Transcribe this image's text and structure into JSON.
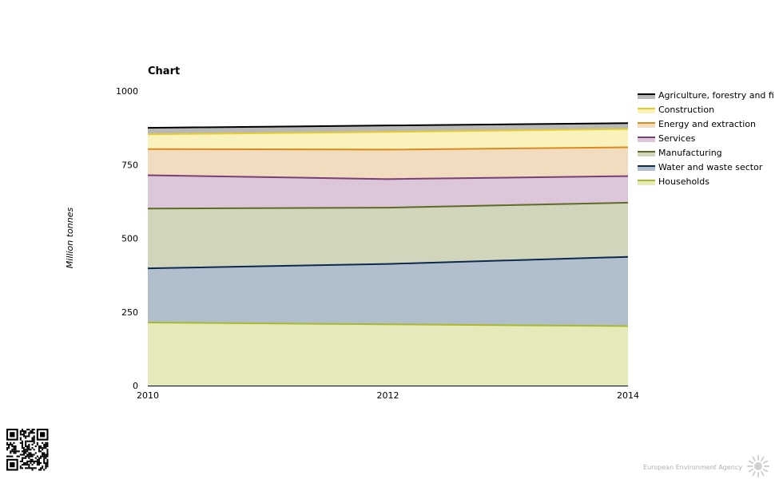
{
  "chart_data": {
    "type": "area",
    "stacked": true,
    "title": "Chart",
    "xlabel": "",
    "ylabel": "Million tonnes",
    "x": [
      2010,
      2012,
      2014
    ],
    "x_ticks": [
      "2010",
      "2012",
      "2014"
    ],
    "y_ticks": [
      "0",
      "250",
      "500",
      "750",
      "1000"
    ],
    "ylim": [
      0,
      1000
    ],
    "grid": false,
    "legend_position": "right",
    "series": [
      {
        "name": "Households",
        "values": [
          214,
          208,
          202
        ],
        "line_color": "#a9b82c",
        "fill_color": "#e6eabb"
      },
      {
        "name": "Water and waste sector",
        "values": [
          184,
          205,
          235
        ],
        "line_color": "#0c2a50",
        "fill_color": "#b1bfcd"
      },
      {
        "name": "Manufacturing",
        "values": [
          203,
          191,
          184
        ],
        "line_color": "#5e6b28",
        "fill_color": "#d1d5bc"
      },
      {
        "name": "Services",
        "values": [
          113,
          97,
          90
        ],
        "line_color": "#7b3e75",
        "fill_color": "#dcc6d9"
      },
      {
        "name": "Energy and extraction",
        "values": [
          89,
          100,
          98
        ],
        "line_color": "#d98b1e",
        "fill_color": "#f2dcbf"
      },
      {
        "name": "Construction",
        "values": [
          50,
          60,
          62
        ],
        "line_color": "#e8cc2e",
        "fill_color": "#faf2bd"
      },
      {
        "name": "Agriculture, forestry and fi",
        "values": [
          22,
          22,
          20
        ],
        "line_color": "#000000",
        "fill_color": "#b8b8b8"
      }
    ]
  },
  "footer": {
    "brand": "European Environment Agency",
    "qr_icon": "qr-code-icon",
    "logo_icon": "eea-sun-logo-icon"
  }
}
